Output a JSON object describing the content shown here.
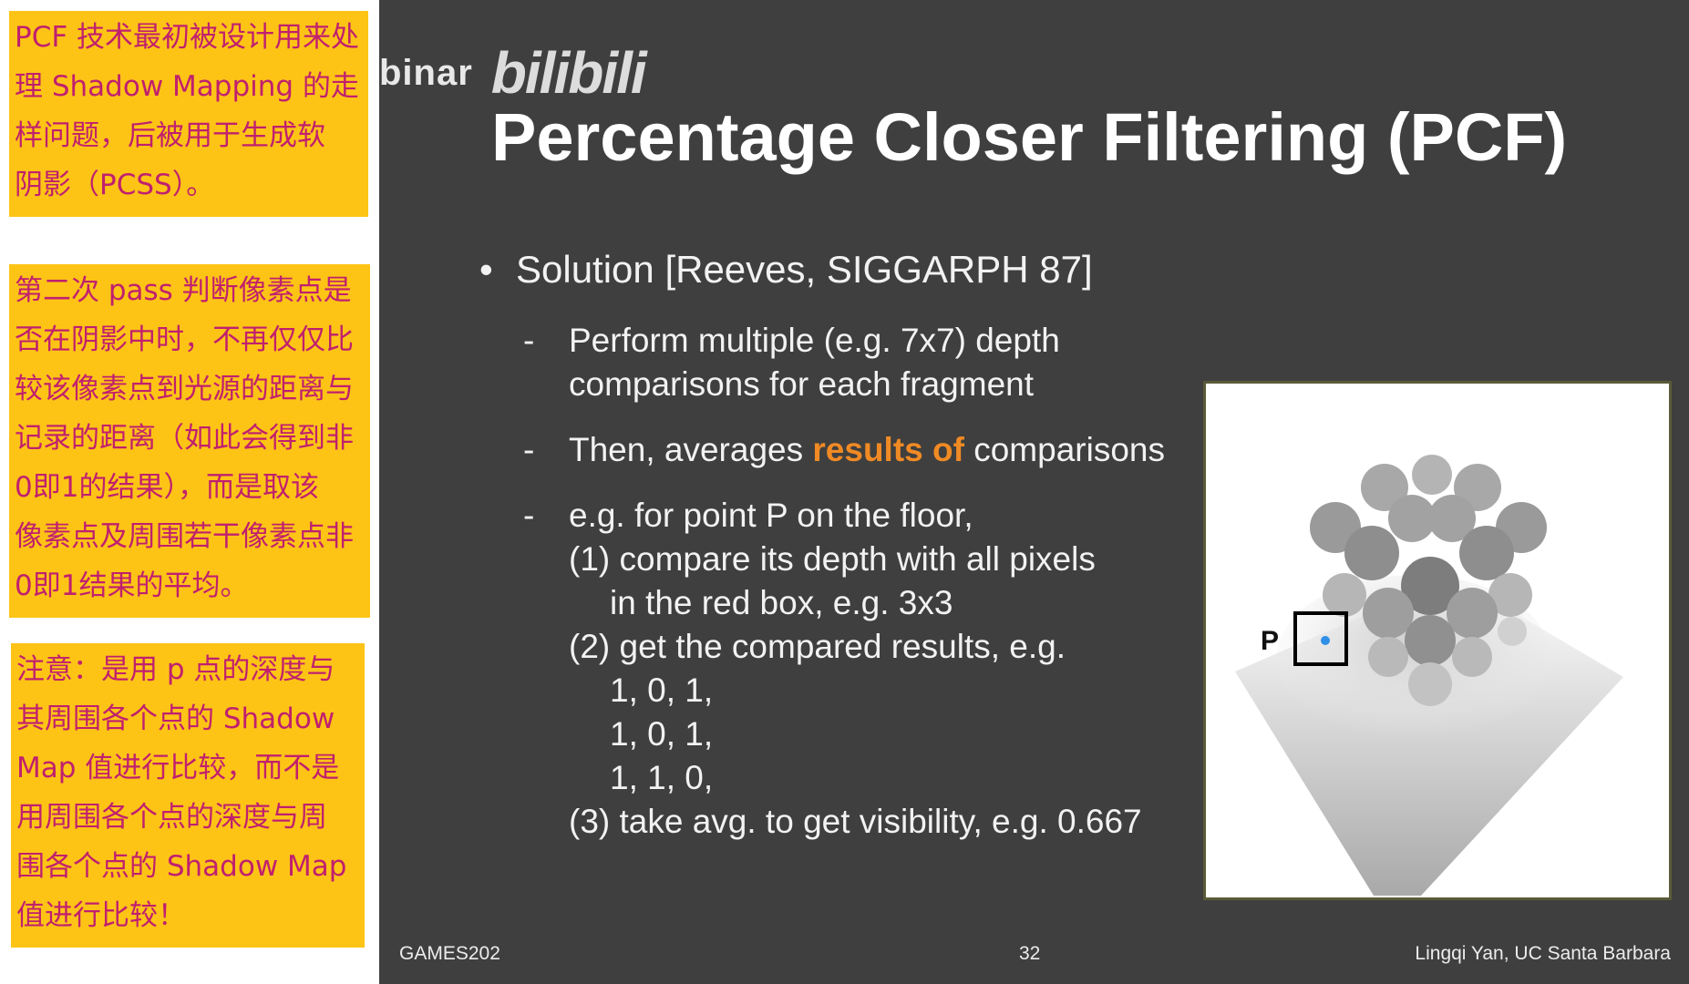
{
  "notes": [
    [
      "PCF 技术最初被设计用来处",
      "理 Shadow Mapping 的走",
      "样问题，后被用于生成软",
      "阴影（PCSS）。"
    ],
    [
      "第二次 pass 判断像素点是",
      "否在阴影中时，不再仅仅比",
      "较该像素点到光源的距离与",
      "记录的距离（如此会得到非",
      "0即1的结果），而是取该",
      "像素点及周围若干像素点非",
      "0即1结果的平均。"
    ],
    [
      "注意：是用 p 点的深度与",
      "其周围各个点的 Shadow",
      "Map 值进行比较，而不是",
      "用周围各个点的深度与周",
      "围各个点的 Shadow Map",
      "值进行比较！"
    ]
  ],
  "watermark": {
    "text": "binar",
    "logo": "bilibili"
  },
  "slide": {
    "title": "Percentage Closer Filtering (PCF)",
    "bullet": "Solution [Reeves, SIGGARPH 87]",
    "sub1": {
      "dash": "-",
      "lines": [
        "Perform multiple (e.g. 7x7) depth",
        "comparisons for each fragment"
      ]
    },
    "sub2": {
      "dash": "-",
      "before": "Then, averages ",
      "highlight": "results of",
      "after": " comparisons"
    },
    "sub3": {
      "dash": "-",
      "lines": [
        "e.g. for point P on the floor,",
        "(1) compare its depth with all pixels",
        "in the red box, e.g. 3x3",
        "(2) get the compared results, e.g.",
        "1, 0, 1,",
        "1, 0, 1,",
        "1, 1, 0,",
        "(3) take avg. to get visibility, e.g. 0.667"
      ]
    },
    "figure_label": "P",
    "footer_left": "GAMES202",
    "footer_center": "32",
    "footer_right": "Lingqi Yan, UC Santa Barbara"
  },
  "colors": {
    "note_bg": "#fdc416",
    "note_text": "#c0206e",
    "slide_bg": "#3f3f3f",
    "highlight": "#f08a24",
    "marker": "#2f8fe8"
  }
}
